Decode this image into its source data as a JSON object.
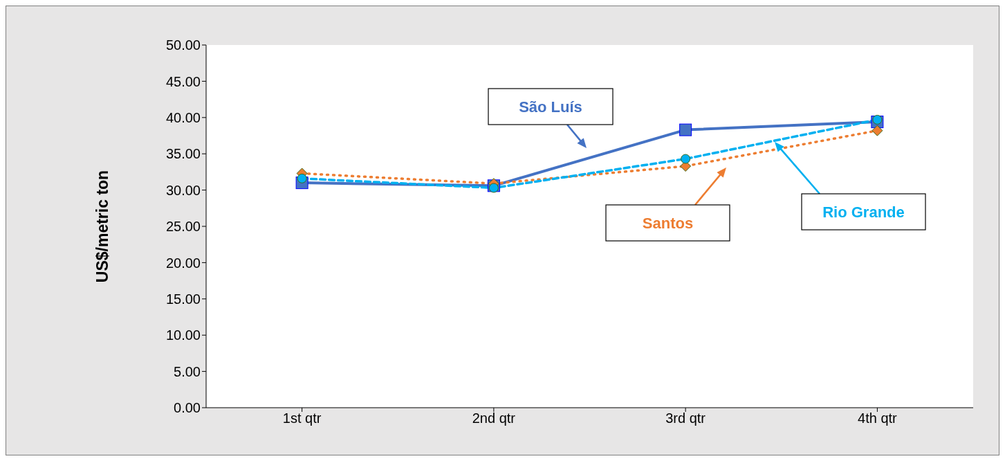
{
  "chart_data": {
    "type": "line",
    "ylabel": "US$/metric ton",
    "categories": [
      "1st qtr",
      "2nd qtr",
      "3rd qtr",
      "4th qtr"
    ],
    "series": [
      {
        "name": "São Luís",
        "color": "#4472c4",
        "marker": "square",
        "line_style": "solid",
        "values": [
          31.0,
          30.6,
          38.3,
          39.4
        ]
      },
      {
        "name": "Santos",
        "color": "#ed7d31",
        "marker": "diamond",
        "line_style": "dotted",
        "values": [
          32.3,
          30.9,
          33.3,
          38.2
        ]
      },
      {
        "name": "Rio Grande",
        "color": "#00b0f0",
        "marker": "circle",
        "line_style": "dashed",
        "values": [
          31.6,
          30.3,
          34.3,
          39.7
        ]
      }
    ],
    "ylim": [
      0,
      50
    ],
    "yticks": [
      {
        "value": 0,
        "label": "0.00"
      },
      {
        "value": 5,
        "label": "5.00"
      },
      {
        "value": 10,
        "label": "10.00"
      },
      {
        "value": 15,
        "label": "15.00"
      },
      {
        "value": 20,
        "label": "20.00"
      },
      {
        "value": 25,
        "label": "25.00"
      },
      {
        "value": 30,
        "label": "30.00"
      },
      {
        "value": 35,
        "label": "35.00"
      },
      {
        "value": 40,
        "label": "40.00"
      },
      {
        "value": 45,
        "label": "45.00"
      },
      {
        "value": 50,
        "label": "50.00"
      }
    ],
    "grid": false,
    "legend": false
  }
}
